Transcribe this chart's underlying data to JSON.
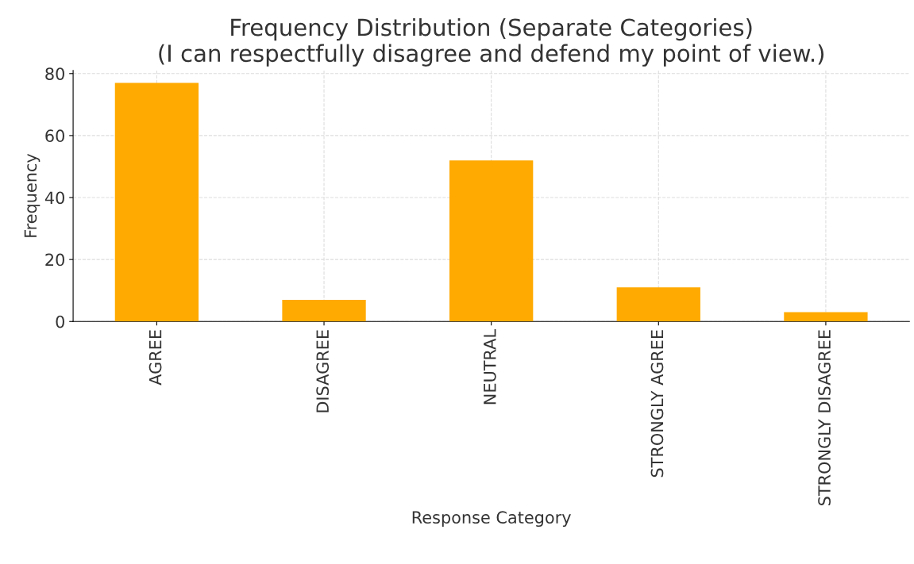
{
  "chart_data": {
    "type": "bar",
    "title": "Frequency Distribution (Separate Categories)\n(I can respectfully disagree and defend my point of view.)",
    "xlabel": "Response Category",
    "ylabel": "Frequency",
    "categories": [
      "AGREE",
      "DISAGREE",
      "NEUTRAL",
      "STRONGLY AGREE",
      "STRONGLY DISAGREE"
    ],
    "values": [
      77,
      7,
      52,
      11,
      3
    ],
    "color": "#ffaa00",
    "ylim": [
      0,
      81
    ],
    "yticks": [
      0,
      20,
      40,
      60,
      80
    ],
    "grid": true,
    "legend": false
  }
}
